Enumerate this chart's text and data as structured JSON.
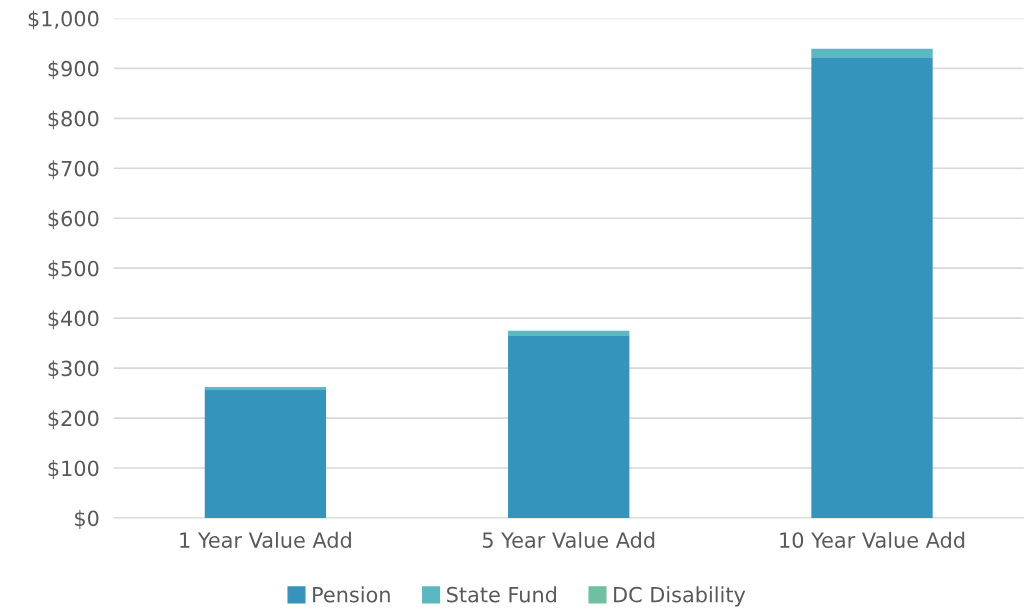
{
  "chart_data": {
    "type": "bar",
    "stacked": true,
    "categories": [
      "1 Year Value Add",
      "5 Year Value Add",
      "10 Year Value Add"
    ],
    "series": [
      {
        "name": "Pension",
        "color": "#3494bc",
        "values": [
          256,
          366,
          922
        ]
      },
      {
        "name": "State Fund",
        "color": "#5bb8c0",
        "values": [
          6,
          9,
          17
        ]
      },
      {
        "name": "DC Disability",
        "color": "#6fbfa0",
        "values": [
          null,
          null,
          null
        ]
      }
    ],
    "ylim": [
      0,
      1000
    ],
    "yticks": [
      {
        "value": 0,
        "label": "$0"
      },
      {
        "value": 100,
        "label": "$100"
      },
      {
        "value": 200,
        "label": "$200"
      },
      {
        "value": 300,
        "label": "$300"
      },
      {
        "value": 400,
        "label": "$400"
      },
      {
        "value": 500,
        "label": "$500"
      },
      {
        "value": 600,
        "label": "$600"
      },
      {
        "value": 700,
        "label": "$700"
      },
      {
        "value": 800,
        "label": "$800"
      },
      {
        "value": 900,
        "label": "$900"
      },
      {
        "value": 1000,
        "label": "$1,000"
      }
    ],
    "grid": "y",
    "legend": "bottom"
  }
}
